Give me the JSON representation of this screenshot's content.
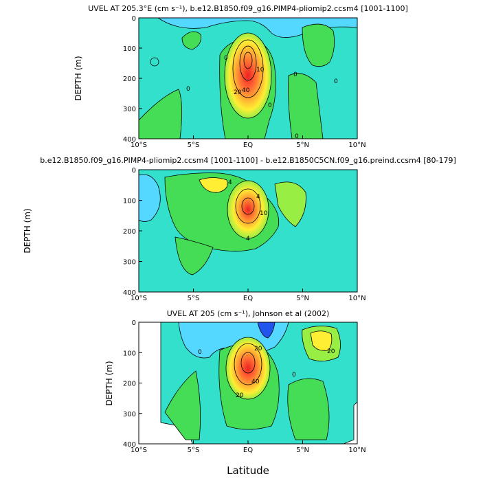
{
  "chart_data": [
    {
      "type": "contour",
      "title": "UVEL AT 205.3°E (cm s⁻¹), b.e12.B1850.f09_g16.PIMP4-pliomip2.ccsm4 [1001-1100]",
      "ylabel": "DEPTH (m)",
      "x_ticks": [
        "10°S",
        "5°S",
        "EQ",
        "5°N",
        "10°N"
      ],
      "y_ticks": [
        "0",
        "100",
        "200",
        "300",
        "400"
      ],
      "xlim": [
        -10,
        10
      ],
      "ylim": [
        400,
        0
      ],
      "contour_labels": [
        "0",
        "0",
        "0",
        "0",
        "0",
        "0",
        "10",
        "20",
        "40"
      ],
      "core": {
        "lat": 0,
        "depth": 150,
        "max_value": 100
      }
    },
    {
      "type": "contour",
      "title": "b.e12.B1850.f09_g16.PIMP4-pliomip2.ccsm4 [1001-1100] - b.e12.B1850C5CN.f09_g16.preind.ccsm4 [80-179]",
      "ylabel": "DEPTH (m)",
      "x_ticks": [
        "10°S",
        "5°S",
        "EQ",
        "5°N",
        "10°N"
      ],
      "y_ticks": [
        "0",
        "100",
        "200",
        "300",
        "400"
      ],
      "xlim": [
        -10,
        10
      ],
      "ylim": [
        400,
        0
      ],
      "contour_labels": [
        "4",
        "4",
        "10",
        "4"
      ],
      "core": {
        "lat": 0,
        "depth": 130,
        "max_value": 20
      }
    },
    {
      "type": "contour",
      "title": "UVEL AT 205 (cm s⁻¹), Johnson et al (2002)",
      "ylabel": "DEPTH (m)",
      "xlabel": "Latitude",
      "x_ticks": [
        "10°S",
        "5°S",
        "EQ",
        "5°N",
        "10°N"
      ],
      "y_ticks": [
        "0",
        "100",
        "200",
        "300",
        "400"
      ],
      "xlim": [
        -10,
        10
      ],
      "ylim": [
        400,
        0
      ],
      "contour_labels": [
        "20",
        "40",
        "20",
        "0",
        "0",
        "20"
      ],
      "core": {
        "lat": 0,
        "depth": 130,
        "max_value": 100
      }
    }
  ],
  "colors": {
    "background_field": "#33e0cc",
    "light_blue": "#55d8ff",
    "blue": "#2255ee",
    "green": "#44dd55",
    "yellow_green": "#99ee44",
    "yellow": "#ffee33",
    "orange": "#ffaa33",
    "red": "#ee2222"
  }
}
